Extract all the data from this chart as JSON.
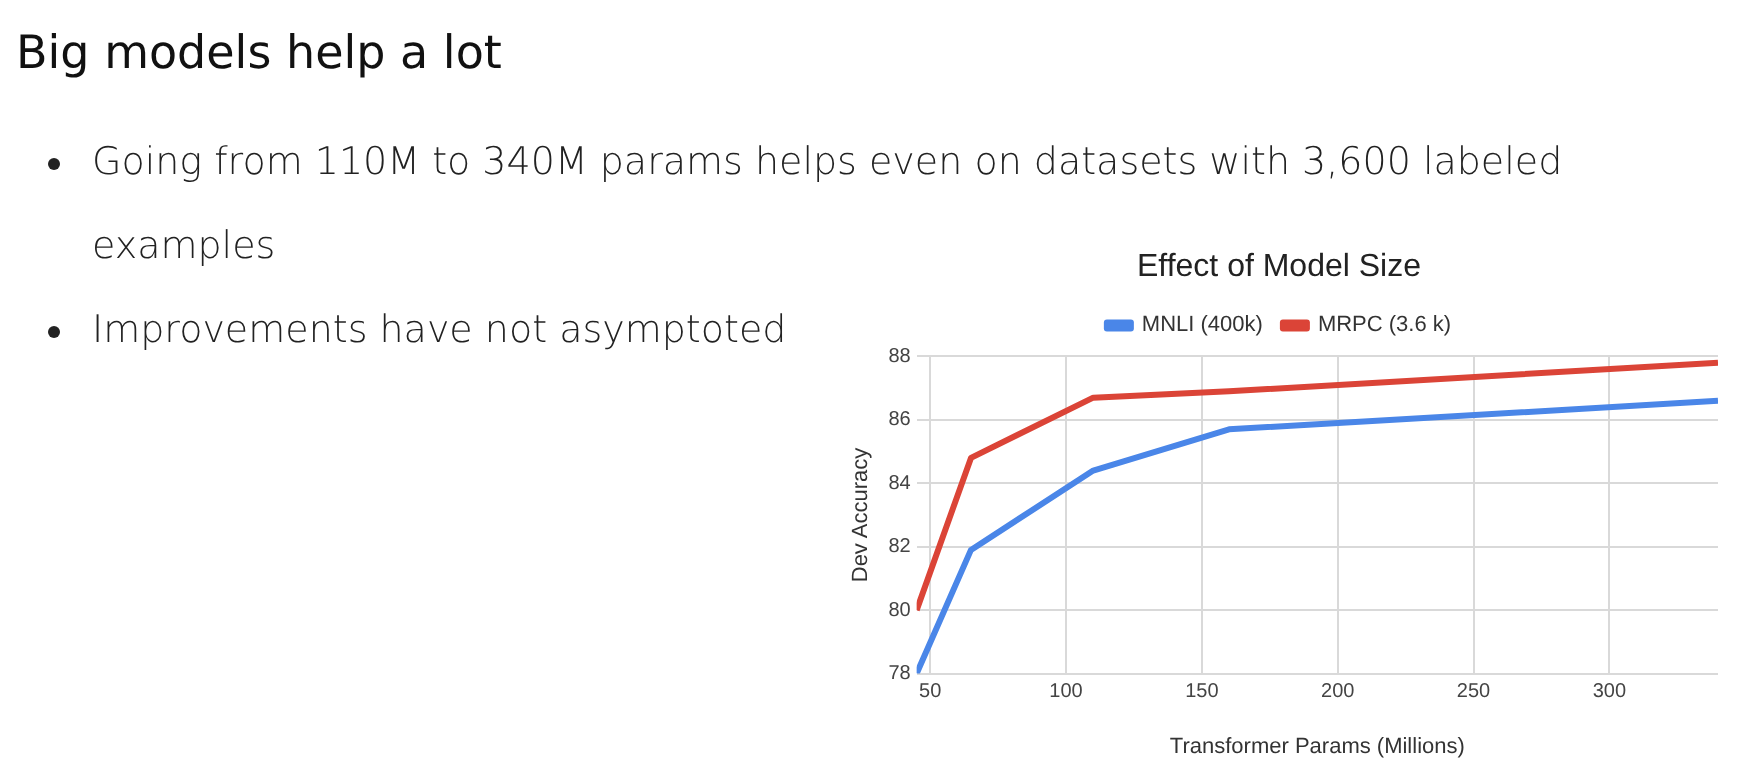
{
  "chart_data": {
    "type": "line",
    "title": "Effect of Model Size",
    "subtitle": "Big models help a lot",
    "annotations": [
      "Going from 110M to 340M params helps even on datasets with 3,600 labeled examples",
      "Improvements have not asymptoted"
    ],
    "xlabel": "Transformer Params (Millions)",
    "ylabel": "Dev Accuracy",
    "x": [
      45,
      65,
      110,
      160,
      340
    ],
    "series": [
      {
        "name": "MNLI (400k)",
        "color": "#4a86e8",
        "values": [
          78.0,
          81.9,
          84.4,
          85.7,
          86.6
        ]
      },
      {
        "name": "MRPC (3.6 k)",
        "color": "#db4437",
        "values": [
          80.0,
          84.8,
          86.7,
          86.9,
          87.8
        ]
      }
    ],
    "xlim": [
      45,
      340
    ],
    "xticks": [
      50,
      100,
      150,
      200,
      250,
      300
    ],
    "ylim": [
      78,
      88
    ],
    "yticks": [
      78,
      80,
      82,
      84,
      86,
      88
    ],
    "grid": true,
    "legend": "top",
    "marker": "none",
    "line_style": "solid"
  }
}
